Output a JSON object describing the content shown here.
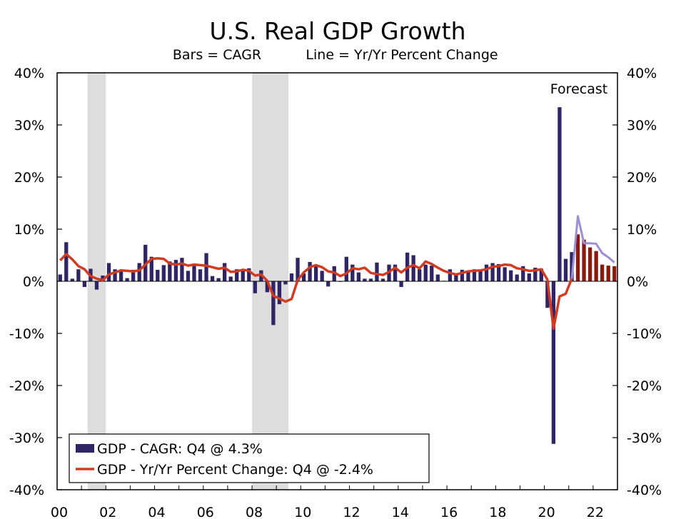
{
  "chart_data": {
    "type": "bar",
    "title": "U.S. Real GDP Growth",
    "subtitle_left": "Bars = CAGR",
    "subtitle_right": "Line = Yr/Yr Percent Change",
    "annotation": "Forecast",
    "ylim": [
      -40,
      40
    ],
    "y_ticks": [
      "-40%",
      "-30%",
      "-20%",
      "-10%",
      "0%",
      "10%",
      "20%",
      "30%",
      "40%"
    ],
    "y_tick_values": [
      -40,
      -30,
      -20,
      -10,
      0,
      10,
      20,
      30,
      40
    ],
    "x_ticks": [
      "00",
      "02",
      "04",
      "06",
      "08",
      "10",
      "12",
      "14",
      "16",
      "18",
      "20",
      "22"
    ],
    "x_tick_values": [
      2000,
      2002,
      2004,
      2006,
      2008,
      2010,
      2012,
      2014,
      2016,
      2018,
      2020,
      2022
    ],
    "xlim": [
      2000,
      2023
    ],
    "recessions": [
      [
        2001.25,
        2002.0
      ],
      [
        2008.0,
        2009.5
      ]
    ],
    "forecast_start": 2021.25,
    "grid": false,
    "legend_position": "bottom-left",
    "colors": {
      "bars": "#2e2466",
      "bars_forecast": "#8b1a0e",
      "line": "#d33b21",
      "line_forecast": "#9b8fd8",
      "recession": "#dddddd"
    },
    "series": [
      {
        "name": "GDP - CAGR: Q4 @ 4.3%",
        "kind": "bar",
        "x": [
          2000.0,
          2000.25,
          2000.5,
          2000.75,
          2001.0,
          2001.25,
          2001.5,
          2001.75,
          2002.0,
          2002.25,
          2002.5,
          2002.75,
          2003.0,
          2003.25,
          2003.5,
          2003.75,
          2004.0,
          2004.25,
          2004.5,
          2004.75,
          2005.0,
          2005.25,
          2005.5,
          2005.75,
          2006.0,
          2006.25,
          2006.5,
          2006.75,
          2007.0,
          2007.25,
          2007.5,
          2007.75,
          2008.0,
          2008.25,
          2008.5,
          2008.75,
          2009.0,
          2009.25,
          2009.5,
          2009.75,
          2010.0,
          2010.25,
          2010.5,
          2010.75,
          2011.0,
          2011.25,
          2011.5,
          2011.75,
          2012.0,
          2012.25,
          2012.5,
          2012.75,
          2013.0,
          2013.25,
          2013.5,
          2013.75,
          2014.0,
          2014.25,
          2014.5,
          2014.75,
          2015.0,
          2015.25,
          2015.5,
          2015.75,
          2016.0,
          2016.25,
          2016.5,
          2016.75,
          2017.0,
          2017.25,
          2017.5,
          2017.75,
          2018.0,
          2018.25,
          2018.5,
          2018.75,
          2019.0,
          2019.25,
          2019.5,
          2019.75,
          2020.0,
          2020.25,
          2020.5,
          2020.75,
          2021.0,
          2021.25,
          2021.5,
          2021.75,
          2022.0,
          2022.25,
          2022.5,
          2022.75
        ],
        "values": [
          1.3,
          7.5,
          0.5,
          2.3,
          -1.1,
          2.4,
          -1.6,
          1.1,
          3.5,
          2.3,
          1.9,
          0.6,
          2.2,
          3.5,
          7.0,
          4.7,
          2.2,
          3.1,
          3.8,
          4.1,
          4.5,
          2.0,
          3.3,
          2.3,
          5.4,
          1.0,
          0.6,
          3.5,
          0.9,
          2.3,
          2.2,
          2.5,
          -2.3,
          2.1,
          -2.1,
          -8.4,
          -4.4,
          -0.6,
          1.5,
          4.5,
          1.5,
          3.7,
          3.0,
          2.0,
          -1.0,
          2.9,
          -0.1,
          4.7,
          3.2,
          1.7,
          0.5,
          0.5,
          3.6,
          0.5,
          3.2,
          3.2,
          -1.1,
          5.5,
          5.0,
          2.3,
          3.2,
          3.0,
          1.3,
          0.1,
          2.3,
          1.3,
          2.2,
          2.0,
          2.3,
          2.2,
          3.2,
          3.5,
          3.3,
          2.7,
          2.1,
          1.3,
          2.9,
          1.5,
          2.6,
          2.4,
          -5.1,
          -31.2,
          33.4,
          4.3,
          5.6,
          9.0,
          8.0,
          6.5,
          5.8,
          3.2,
          3.0,
          2.9
        ]
      },
      {
        "name": "GDP - Yr/Yr Percent Change: Q4 @ -2.4%",
        "kind": "line",
        "x": [
          2000.0,
          2000.25,
          2000.5,
          2000.75,
          2001.0,
          2001.25,
          2001.5,
          2001.75,
          2002.0,
          2002.25,
          2002.5,
          2002.75,
          2003.0,
          2003.25,
          2003.5,
          2003.75,
          2004.0,
          2004.25,
          2004.5,
          2004.75,
          2005.0,
          2005.25,
          2005.5,
          2005.75,
          2006.0,
          2006.25,
          2006.5,
          2006.75,
          2007.0,
          2007.25,
          2007.5,
          2007.75,
          2008.0,
          2008.25,
          2008.5,
          2008.75,
          2009.0,
          2009.25,
          2009.5,
          2009.75,
          2010.0,
          2010.25,
          2010.5,
          2010.75,
          2011.0,
          2011.25,
          2011.5,
          2011.75,
          2012.0,
          2012.25,
          2012.5,
          2012.75,
          2013.0,
          2013.25,
          2013.5,
          2013.75,
          2014.0,
          2014.25,
          2014.5,
          2014.75,
          2015.0,
          2015.25,
          2015.5,
          2015.75,
          2016.0,
          2016.25,
          2016.5,
          2016.75,
          2017.0,
          2017.25,
          2017.5,
          2017.75,
          2018.0,
          2018.25,
          2018.5,
          2018.75,
          2019.0,
          2019.25,
          2019.5,
          2019.75,
          2020.0,
          2020.25,
          2020.5,
          2020.75,
          2021.0,
          2021.25,
          2021.5,
          2021.75,
          2022.0,
          2022.25,
          2022.5,
          2022.75
        ],
        "values": [
          4.0,
          5.2,
          4.2,
          2.9,
          2.3,
          1.0,
          0.5,
          0.2,
          1.3,
          1.7,
          2.1,
          2.0,
          1.9,
          2.1,
          3.2,
          4.3,
          4.4,
          4.3,
          3.4,
          3.2,
          3.4,
          3.0,
          3.2,
          3.1,
          3.0,
          2.7,
          2.4,
          2.6,
          1.8,
          1.9,
          2.2,
          2.0,
          1.1,
          1.3,
          0.1,
          -2.8,
          -3.3,
          -3.9,
          -3.4,
          0.2,
          1.7,
          2.7,
          3.1,
          2.7,
          1.9,
          1.7,
          1.0,
          1.5,
          2.5,
          2.3,
          2.6,
          1.6,
          1.4,
          1.2,
          1.8,
          2.6,
          1.7,
          2.6,
          3.1,
          2.5,
          3.8,
          3.3,
          2.6,
          2.0,
          1.6,
          1.3,
          1.6,
          1.9,
          2.0,
          2.1,
          2.3,
          2.8,
          2.9,
          3.2,
          3.1,
          2.5,
          2.3,
          2.0,
          2.1,
          2.3,
          0.3,
          -9.1,
          -2.9,
          -2.4,
          0.5,
          12.5,
          7.3,
          7.3,
          7.2,
          5.4,
          4.6,
          3.6
        ]
      }
    ]
  }
}
